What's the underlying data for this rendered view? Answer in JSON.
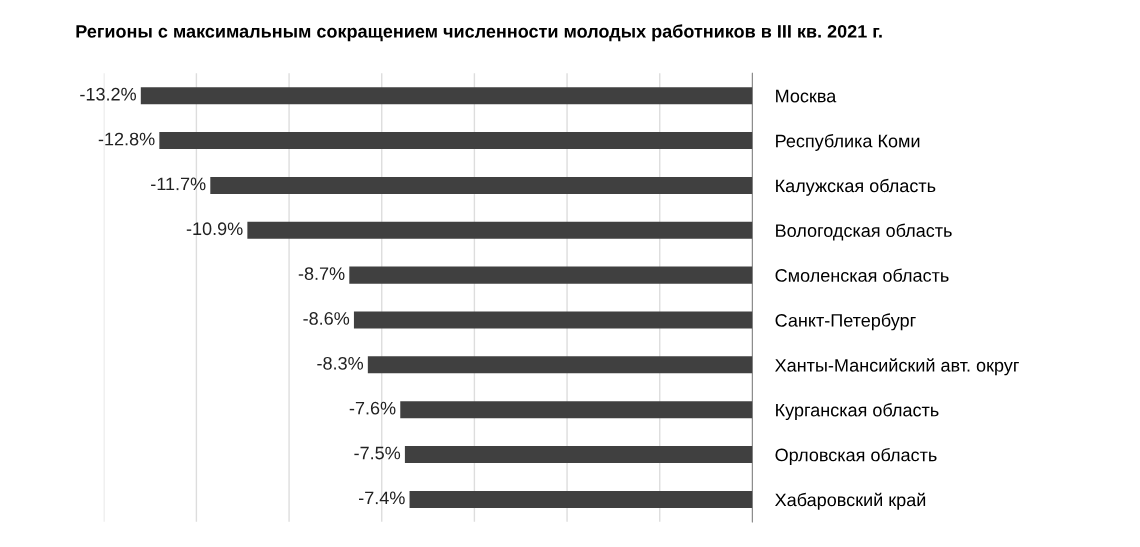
{
  "chart_data": {
    "type": "bar",
    "orientation": "horizontal",
    "title": "Регионы с максимальным сокращением численности молодых работников в III кв. 2021 г.",
    "categories": [
      "Москва",
      "Республика Коми",
      "Калужская область",
      "Вологодская область",
      "Смоленская область",
      "Санкт-Петербург",
      "Ханты-Мансийский авт. округ",
      "Курганская область",
      "Орловская область",
      "Хабаровский край"
    ],
    "values": [
      -13.2,
      -12.8,
      -11.7,
      -10.9,
      -8.7,
      -8.6,
      -8.3,
      -7.6,
      -7.5,
      -7.4
    ],
    "value_labels": [
      "-13.2%",
      "-12.8%",
      "-11.7%",
      "-10.9%",
      "-8.7%",
      "-8.6%",
      "-8.3%",
      "-7.6%",
      "-7.5%",
      "-7.4%"
    ],
    "color": "#404040",
    "xlim": [
      -14,
      0
    ],
    "xticks": [
      {
        "value": -14,
        "label": null
      },
      {
        "value": -12,
        "label": null
      },
      {
        "value": -10,
        "label": null
      },
      {
        "value": -8,
        "label": null
      },
      {
        "value": -6,
        "label": null
      },
      {
        "value": -4,
        "label": null
      },
      {
        "value": -2,
        "label": null
      },
      {
        "value": 0,
        "label": null
      }
    ],
    "grid": "x",
    "tick_labels": "y",
    "legend": false
  }
}
